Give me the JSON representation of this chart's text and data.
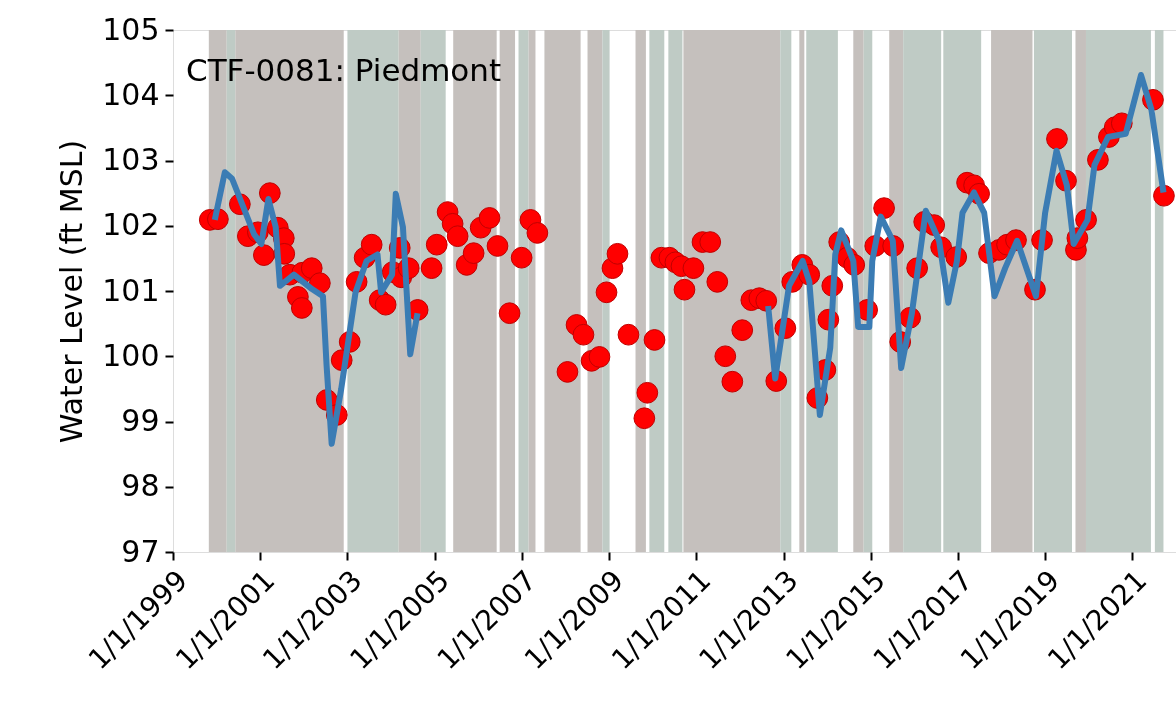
{
  "chart_data": {
    "type": "line",
    "title": "CTF-0081: Piedmont",
    "ylabel": "Water Level (ft MSL)",
    "xlim": [
      "1999-01-01",
      "2022-01-01"
    ],
    "ylim": [
      97,
      105
    ],
    "xticks": [
      {
        "value": "1999-01-01",
        "label": "1/1/1999"
      },
      {
        "value": "2001-01-01",
        "label": "1/1/2001"
      },
      {
        "value": "2003-01-01",
        "label": "1/1/2003"
      },
      {
        "value": "2005-01-01",
        "label": "1/1/2005"
      },
      {
        "value": "2007-01-01",
        "label": "1/1/2007"
      },
      {
        "value": "2009-01-01",
        "label": "1/1/2009"
      },
      {
        "value": "2011-01-01",
        "label": "1/1/2011"
      },
      {
        "value": "2013-01-01",
        "label": "1/1/2013"
      },
      {
        "value": "2015-01-01",
        "label": "1/1/2015"
      },
      {
        "value": "2017-01-01",
        "label": "1/1/2017"
      },
      {
        "value": "2019-01-01",
        "label": "1/1/2019"
      },
      {
        "value": "2021-01-01",
        "label": "1/1/2021"
      }
    ],
    "yticks": [
      97,
      98,
      99,
      100,
      101,
      102,
      103,
      104,
      105
    ],
    "grid": false,
    "series": [
      {
        "type": "line",
        "color": "#3b7cb4",
        "line_style": "solid",
        "x": [
          "1999-12-17",
          "2000-03-10",
          "2000-05-10",
          "2000-11-10",
          "2001-01-10",
          "2001-03-10",
          "2001-05-10",
          "2001-06-15",
          "2001-10-10",
          "2002-03-10",
          "2002-06-10",
          "2002-07-10",
          "2002-08-22",
          "2002-11-10",
          "2003-03-10",
          "2003-06-10",
          "2003-09-10",
          "2003-10-10",
          "2004-01-10",
          "2004-02-10",
          "2004-04-10",
          "2004-06-10",
          "2004-08-10",
          "2008-01-01",
          "2012-08-25",
          "2012-10-23",
          "2013-02-16",
          "2013-06-10",
          "2013-08-05",
          "2013-11-01",
          "2014-01-27",
          "2014-03-10",
          "2014-04-29",
          "2014-08-08",
          "2014-09-18",
          "2014-12-20",
          "2015-01-14",
          "2015-03-26",
          "2015-07-05",
          "2015-09-13",
          "2015-12-12",
          "2016-04-06",
          "2016-07-27",
          "2016-10-12",
          "2016-12-23",
          "2017-02-08",
          "2017-05-15",
          "2017-08-08",
          "2017-11-03",
          "2018-01-31",
          "2018-05-11",
          "2018-10-16",
          "2019-01-01",
          "2019-04-06",
          "2019-07-02",
          "2019-08-28",
          "2019-12-22",
          "2020-02-18",
          "2020-06-11",
          "2020-11-06",
          "2021-03-14",
          "2021-06-09",
          "2021-09-18"
        ],
        "values": [
          102.09,
          102.82,
          102.72,
          101.87,
          101.72,
          102.41,
          101.98,
          101.08,
          101.25,
          101.03,
          100.92,
          99.87,
          98.66,
          99.5,
          100.98,
          101.46,
          101.56,
          100.98,
          101.25,
          102.49,
          101.98,
          100.03,
          100.66,
          null,
          100.77,
          99.66,
          101.08,
          101.46,
          101.14,
          99.1,
          100.13,
          101.56,
          101.93,
          101.46,
          100.45,
          100.45,
          101.46,
          102.14,
          101.77,
          99.82,
          100.66,
          102.23,
          101.77,
          100.82,
          101.46,
          102.2,
          102.51,
          102.2,
          100.92,
          101.35,
          101.77,
          100.92,
          102.2,
          103.15,
          102.62,
          101.72,
          102.09,
          102.93,
          103.36,
          103.41,
          104.31,
          103.78,
          102.51
        ]
      },
      {
        "type": "scatter",
        "color": "#ff0000",
        "marker": "circle",
        "x": [
          "1999-11-05",
          "2000-01-12",
          "2000-07-14",
          "2000-09-19",
          "2000-12-12",
          "2001-01-31",
          "2001-03-22",
          "2001-05-28",
          "2001-07-17",
          "2001-07-21",
          "2001-09-06",
          "2001-11-12",
          "2001-12-15",
          "2001-12-19",
          "2002-03-08",
          "2002-05-15",
          "2002-07-12",
          "2002-10-04",
          "2002-11-14",
          "2003-01-20",
          "2003-03-19",
          "2003-05-25",
          "2003-07-23",
          "2003-09-28",
          "2003-11-17",
          "2004-01-15",
          "2004-03-14",
          "2004-03-27",
          "2004-05-28",
          "2004-08-11",
          "2004-12-06",
          "2005-01-18",
          "2005-04-19",
          "2005-05-31",
          "2005-07-12",
          "2005-09-26",
          "2005-11-23",
          "2006-01-21",
          "2006-04-05",
          "2006-06-11",
          "2006-09-20",
          "2006-12-30",
          "2007-03-14",
          "2007-05-11",
          "2008-01-18",
          "2008-04-03",
          "2008-05-31",
          "2008-08-07",
          "2008-10-12",
          "2008-12-10",
          "2009-01-29",
          "2009-03-12",
          "2009-06-12",
          "2009-10-23",
          "2009-11-17",
          "2010-01-16",
          "2010-03-15",
          "2010-05-21",
          "2010-07-10",
          "2010-08-30",
          "2010-09-24",
          "2010-12-08",
          "2011-02-22",
          "2011-04-28",
          "2011-06-26",
          "2011-09-01",
          "2011-10-30",
          "2012-01-21",
          "2012-04-06",
          "2012-06-12",
          "2012-08-09",
          "2012-11-01",
          "2013-01-16",
          "2013-03-15",
          "2013-06-07",
          "2013-08-04",
          "2013-10-11",
          "2013-12-17",
          "2014-01-11",
          "2014-02-13",
          "2014-04-12",
          "2014-06-18",
          "2014-08-16",
          "2014-12-02",
          "2015-02-08",
          "2015-04-23",
          "2015-07-08",
          "2015-09-05",
          "2015-11-27",
          "2016-01-25",
          "2016-03-24",
          "2016-06-16",
          "2016-08-13",
          "2016-12-17",
          "2017-03-18",
          "2017-05-16",
          "2017-06-27",
          "2017-09-18",
          "2017-12-11",
          "2018-02-16",
          "2018-05-02",
          "2018-10-08",
          "2018-12-06",
          "2019-04-10",
          "2019-06-25",
          "2019-09-16",
          "2019-09-28",
          "2019-12-10",
          "2020-03-18",
          "2020-06-18",
          "2020-08-06",
          "2020-10-04",
          "2021-06-22",
          "2021-09-22"
        ],
        "values": [
          102.09,
          102.1,
          102.33,
          101.84,
          101.9,
          101.55,
          102.5,
          101.97,
          101.81,
          101.57,
          101.25,
          100.91,
          100.74,
          101.28,
          101.35,
          101.12,
          99.33,
          99.1,
          99.94,
          100.22,
          101.14,
          101.51,
          101.71,
          100.86,
          100.79,
          101.29,
          101.66,
          101.21,
          101.35,
          100.71,
          101.35,
          101.71,
          102.21,
          102.03,
          101.84,
          101.4,
          101.58,
          101.97,
          102.12,
          101.69,
          100.66,
          101.51,
          102.09,
          101.89,
          99.76,
          100.48,
          100.33,
          99.93,
          99.99,
          100.98,
          101.35,
          101.57,
          100.33,
          99.05,
          99.44,
          100.25,
          101.51,
          101.51,
          101.44,
          101.38,
          101.02,
          101.35,
          101.75,
          101.75,
          101.14,
          100.0,
          99.61,
          100.4,
          100.86,
          100.89,
          100.85,
          99.62,
          100.43,
          101.14,
          101.4,
          101.25,
          99.36,
          99.79,
          100.56,
          101.08,
          101.75,
          101.51,
          101.4,
          100.71,
          101.69,
          102.27,
          101.69,
          100.22,
          100.59,
          101.35,
          102.06,
          102.01,
          101.67,
          101.52,
          102.66,
          102.62,
          102.49,
          101.58,
          101.63,
          101.71,
          101.78,
          101.02,
          101.78,
          103.33,
          102.69,
          101.63,
          101.81,
          102.09,
          103.01,
          103.36,
          103.51,
          103.57,
          103.93,
          102.46
        ]
      }
    ],
    "bands": [
      {
        "axis": "x",
        "from": "1999-10-28",
        "to": "2000-03-26",
        "color": "#c5c0bd"
      },
      {
        "axis": "x",
        "from": "2000-03-26",
        "to": "2000-06-06",
        "color": "#bfcbc5"
      },
      {
        "axis": "x",
        "from": "2000-06-06",
        "to": "2002-12-01",
        "color": "#c5c0bd"
      },
      {
        "axis": "x",
        "from": "2003-01-01",
        "to": "2004-03-05",
        "color": "#bfcbc5"
      },
      {
        "axis": "x",
        "from": "2004-03-05",
        "to": "2004-09-06",
        "color": "#c5c0bd"
      },
      {
        "axis": "x",
        "from": "2004-09-06",
        "to": "2005-04-03",
        "color": "#bfcbc5"
      },
      {
        "axis": "x",
        "from": "2005-06-05",
        "to": "2006-06-04",
        "color": "#c5c0bd"
      },
      {
        "axis": "x",
        "from": "2006-06-29",
        "to": "2006-11-05",
        "color": "#c5c0bd"
      },
      {
        "axis": "x",
        "from": "2006-12-04",
        "to": "2007-02-26",
        "color": "#bfcbc5"
      },
      {
        "axis": "x",
        "from": "2007-02-26",
        "to": "2007-04-25",
        "color": "#c5c0bd"
      },
      {
        "axis": "x",
        "from": "2007-07-09",
        "to": "2008-05-07",
        "color": "#c5c0bd"
      },
      {
        "axis": "x",
        "from": "2008-07-04",
        "to": "2008-11-06",
        "color": "#c5c0bd"
      },
      {
        "axis": "x",
        "from": "2008-11-06",
        "to": "2009-01-05",
        "color": "#bfcbc5"
      },
      {
        "axis": "x",
        "from": "2009-08-10",
        "to": "2009-11-05",
        "color": "#c5c0bd"
      },
      {
        "axis": "x",
        "from": "2009-12-04",
        "to": "2010-04-08",
        "color": "#bfcbc5"
      },
      {
        "axis": "x",
        "from": "2010-05-12",
        "to": "2010-09-07",
        "color": "#bfcbc5"
      },
      {
        "axis": "x",
        "from": "2010-09-15",
        "to": "2012-12-05",
        "color": "#c5c0bd"
      },
      {
        "axis": "x",
        "from": "2012-12-05",
        "to": "2013-03-07",
        "color": "#bfcbc5"
      },
      {
        "axis": "x",
        "from": "2013-05-13",
        "to": "2013-06-24",
        "color": "#c5c0bd"
      },
      {
        "axis": "x",
        "from": "2013-07-10",
        "to": "2014-04-01",
        "color": "#bfcbc5"
      },
      {
        "axis": "x",
        "from": "2014-08-08",
        "to": "2014-11-03",
        "color": "#c5c0bd"
      },
      {
        "axis": "x",
        "from": "2014-11-03",
        "to": "2015-01-14",
        "color": "#bfcbc5"
      },
      {
        "axis": "x",
        "from": "2015-06-05",
        "to": "2015-09-30",
        "color": "#c5c0bd"
      },
      {
        "axis": "x",
        "from": "2015-09-30",
        "to": "2016-08-13",
        "color": "#bfcbc5"
      },
      {
        "axis": "x",
        "from": "2016-08-31",
        "to": "2017-07-14",
        "color": "#bfcbc5"
      },
      {
        "axis": "x",
        "from": "2017-10-05",
        "to": "2018-09-17",
        "color": "#c5c0bd"
      },
      {
        "axis": "x",
        "from": "2018-09-29",
        "to": "2019-08-14",
        "color": "#bfcbc5"
      },
      {
        "axis": "x",
        "from": "2019-09-12",
        "to": "2019-12-09",
        "color": "#c5c0bd"
      },
      {
        "axis": "x",
        "from": "2019-12-09",
        "to": "2021-06-05",
        "color": "#bfcbc5"
      },
      {
        "axis": "x",
        "from": "2021-07-08",
        "to": "2021-09-18",
        "color": "#bfcbc5"
      }
    ]
  }
}
